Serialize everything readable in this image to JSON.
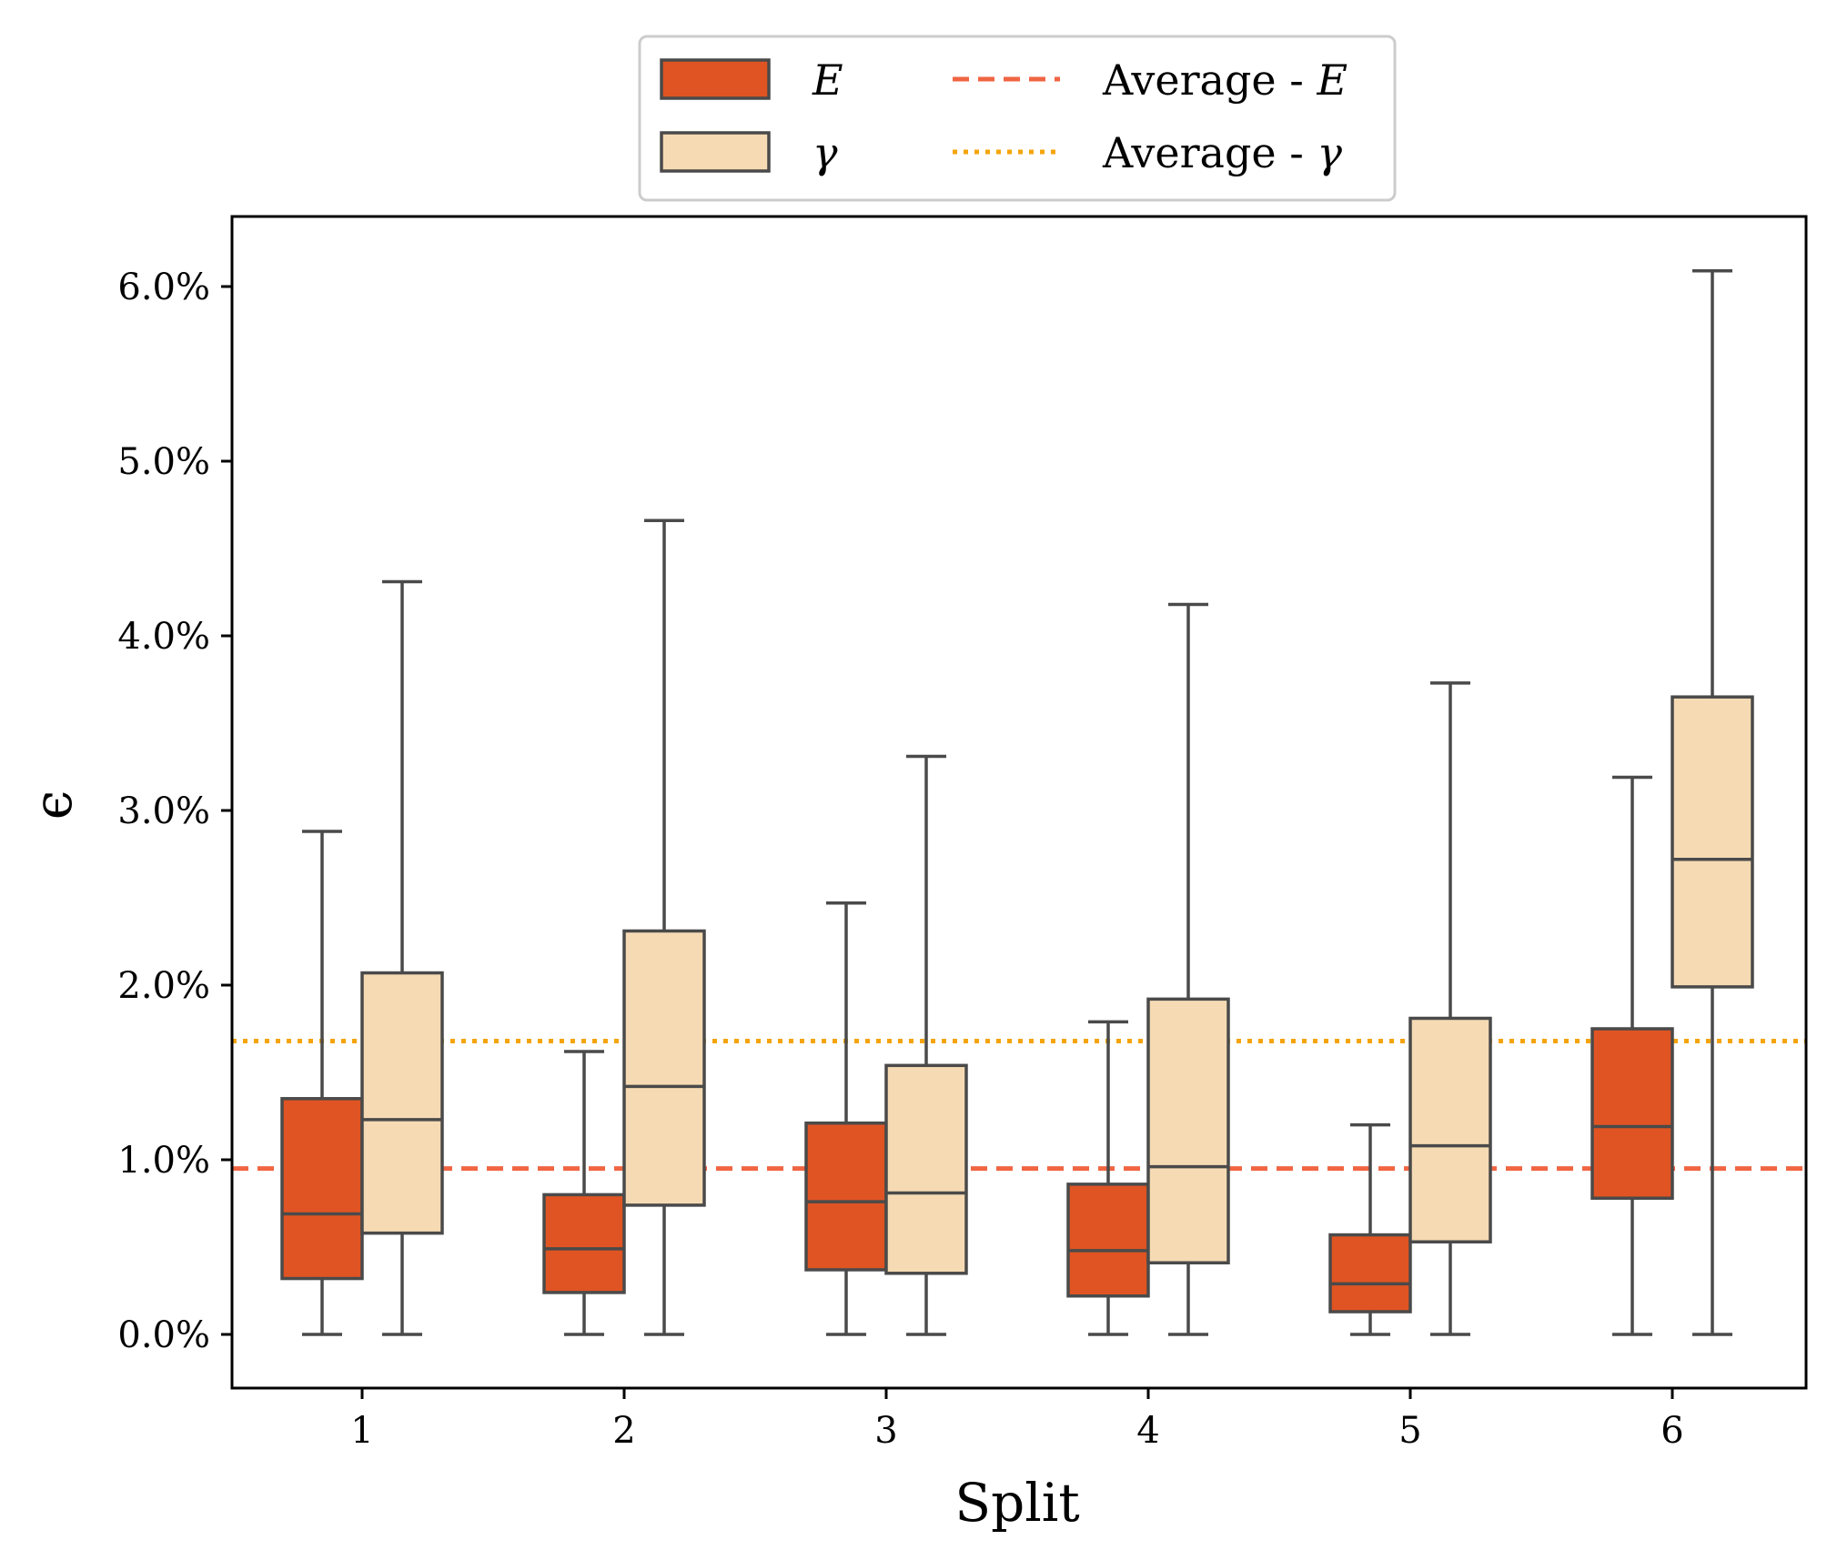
{
  "chart_data": {
    "type": "box",
    "xlabel": "Split",
    "ylabel": "ϵ",
    "categories": [
      "1",
      "2",
      "3",
      "4",
      "5",
      "6"
    ],
    "ylim": [
      -0.3,
      6.4
    ],
    "yticks": [
      0,
      1,
      2,
      3,
      4,
      5,
      6
    ],
    "ytick_labels": [
      "0.0%",
      "1.0%",
      "2.0%",
      "3.0%",
      "4.0%",
      "5.0%",
      "6.0%"
    ],
    "y_unit": "%",
    "grid": false,
    "legend_position": "top-center",
    "series": [
      {
        "name": "E",
        "color": "#e05423",
        "boxes": [
          {
            "category": "1",
            "whisker_low": 0.0,
            "q1": 0.32,
            "median": 0.69,
            "q3": 1.35,
            "whisker_high": 2.88
          },
          {
            "category": "2",
            "whisker_low": 0.0,
            "q1": 0.24,
            "median": 0.49,
            "q3": 0.8,
            "whisker_high": 1.62
          },
          {
            "category": "3",
            "whisker_low": 0.0,
            "q1": 0.37,
            "median": 0.76,
            "q3": 1.21,
            "whisker_high": 2.47
          },
          {
            "category": "4",
            "whisker_low": 0.0,
            "q1": 0.22,
            "median": 0.48,
            "q3": 0.86,
            "whisker_high": 1.79
          },
          {
            "category": "5",
            "whisker_low": 0.0,
            "q1": 0.13,
            "median": 0.29,
            "q3": 0.57,
            "whisker_high": 1.2
          },
          {
            "category": "6",
            "whisker_low": 0.0,
            "q1": 0.78,
            "median": 1.19,
            "q3": 1.75,
            "whisker_high": 3.19
          }
        ]
      },
      {
        "name": "γ",
        "color": "#f5dab3",
        "boxes": [
          {
            "category": "1",
            "whisker_low": 0.0,
            "q1": 0.58,
            "median": 1.23,
            "q3": 2.07,
            "whisker_high": 4.31
          },
          {
            "category": "2",
            "whisker_low": 0.0,
            "q1": 0.74,
            "median": 1.42,
            "q3": 2.31,
            "whisker_high": 4.66
          },
          {
            "category": "3",
            "whisker_low": 0.0,
            "q1": 0.35,
            "median": 0.81,
            "q3": 1.54,
            "whisker_high": 3.31
          },
          {
            "category": "4",
            "whisker_low": 0.0,
            "q1": 0.41,
            "median": 0.96,
            "q3": 1.92,
            "whisker_high": 4.18
          },
          {
            "category": "5",
            "whisker_low": 0.0,
            "q1": 0.53,
            "median": 1.08,
            "q3": 1.81,
            "whisker_high": 3.73
          },
          {
            "category": "6",
            "whisker_low": 0.0,
            "q1": 1.99,
            "median": 2.72,
            "q3": 3.65,
            "whisker_high": 6.09
          }
        ]
      }
    ],
    "reference_lines": [
      {
        "name": "Average - E",
        "value": 0.95,
        "style": "dashed",
        "color": "#f06543"
      },
      {
        "name": "Average - γ",
        "value": 1.68,
        "style": "dotted",
        "color": "#f5a40a"
      }
    ]
  },
  "legend": {
    "box_e_label": "E",
    "box_gamma_label": "γ",
    "avg_prefix": "Average - ",
    "avg_e_symbol": "E",
    "avg_gamma_symbol": "γ"
  },
  "colors": {
    "box_edge": "#4a4a4a",
    "axis": "#000000",
    "legend_border": "#cccccc"
  }
}
